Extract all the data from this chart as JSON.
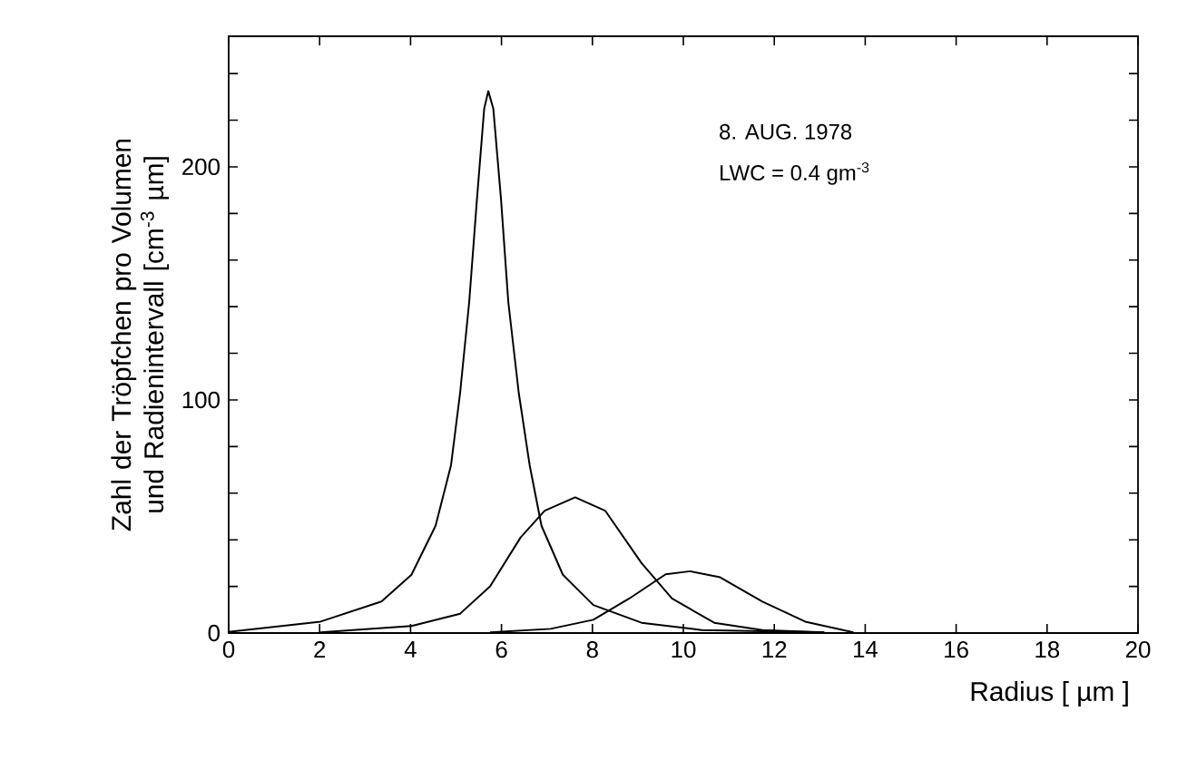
{
  "chart_data": {
    "type": "line",
    "xlabel": "Radius [ µm ]",
    "ylabel": "Zahl der Tröpfchen pro Volumen und Radienintervall [cm$^{-3}$ µm]",
    "annotations": [
      "8. AUG. 1978",
      "LWC = 0.4 gm$^{-3}$"
    ],
    "xlim": [
      0,
      20
    ],
    "ylim": [
      0,
      256
    ],
    "xticks": [
      0,
      2,
      4,
      6,
      8,
      10,
      12,
      14,
      16,
      18,
      20
    ],
    "yticks": [
      0,
      {
        "value": 20,
        "label": null
      },
      {
        "value": 40,
        "label": null
      },
      {
        "value": 60,
        "label": null
      },
      {
        "value": 80,
        "label": null
      },
      100,
      {
        "value": 120,
        "label": null
      },
      {
        "value": 140,
        "label": null
      },
      {
        "value": 160,
        "label": null
      },
      {
        "value": 180,
        "label": null
      },
      200,
      {
        "value": 220,
        "label": null
      },
      {
        "value": 240,
        "label": null
      }
    ],
    "grid": false,
    "series": [
      {
        "color": "#000000",
        "x": [
          0,
          2.02,
          3.36,
          4.02,
          4.55,
          4.89,
          5.09,
          5.29,
          5.46,
          5.62,
          5.71,
          5.82,
          5.99,
          6.15,
          6.38,
          6.62,
          6.88,
          7.35,
          8.02,
          9.08,
          10.4,
          13.1
        ],
        "values": [
          0.5,
          4.9,
          13.5,
          25,
          46,
          72,
          103,
          142,
          186,
          225,
          232.5,
          225,
          186,
          142,
          103,
          72,
          46,
          25,
          12,
          4.4,
          1.3,
          0.3
        ]
      },
      {
        "color": "#000000",
        "x": [
          2.02,
          4.02,
          5.09,
          5.75,
          6.42,
          6.95,
          7.62,
          8.28,
          9.08,
          9.75,
          10.68,
          11.74,
          13.1
        ],
        "values": [
          0.3,
          3,
          8.3,
          20,
          41,
          52.5,
          58.2,
          52.5,
          30,
          14.8,
          4.4,
          1.3,
          0.3
        ]
      },
      {
        "color": "#000000",
        "x": [
          5.75,
          7.08,
          8.02,
          8.81,
          9.61,
          10.15,
          10.81,
          11.74,
          12.68,
          13.74
        ],
        "values": [
          0.3,
          1.8,
          5.7,
          14.8,
          25.2,
          26.5,
          23.9,
          13.5,
          4.9,
          0.3
        ]
      }
    ]
  }
}
